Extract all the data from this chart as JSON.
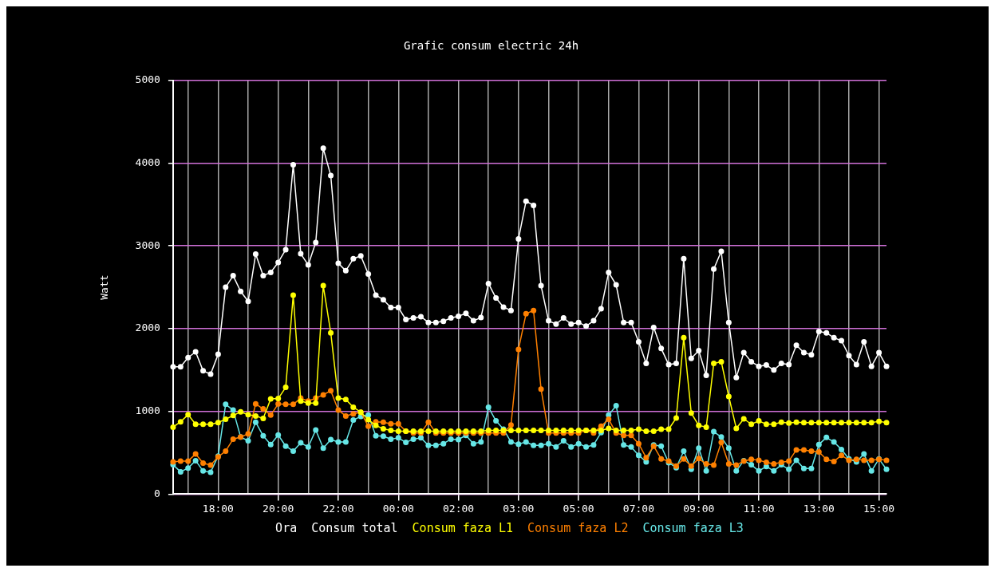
{
  "chart_data": {
    "type": "line",
    "title": "Grafic consum electric 24h",
    "xlabel": "Ora",
    "ylabel": "Watt",
    "categories": [
      null,
      null,
      null,
      null,
      null,
      null,
      "18:00",
      null,
      null,
      null,
      null,
      null,
      null,
      null,
      "20:00",
      null,
      null,
      null,
      null,
      null,
      null,
      null,
      "22:00",
      null,
      null,
      null,
      null,
      null,
      null,
      null,
      "00:00",
      null,
      null,
      null,
      null,
      null,
      null,
      null,
      "02:00",
      null,
      null,
      null,
      null,
      null,
      null,
      null,
      "03:00",
      null,
      null,
      null,
      null,
      null,
      null,
      null,
      "05:00",
      null,
      null,
      null,
      null,
      null,
      null,
      null,
      "07:00",
      null,
      null,
      null,
      null,
      null,
      null,
      null,
      "09:00",
      null,
      null,
      null,
      null,
      null,
      null,
      null,
      "11:00",
      null,
      null,
      null,
      null,
      null,
      null,
      null,
      "13:00",
      null,
      null,
      null,
      null,
      null,
      null,
      null,
      "15:00",
      null
    ],
    "series": [
      {
        "name": "Consum total",
        "color": "#ffffff",
        "values": [
          1540,
          1540,
          1650,
          1720,
          1490,
          1450,
          1690,
          2500,
          2640,
          2450,
          2330,
          2900,
          2640,
          2680,
          2800,
          2955,
          3980,
          2905,
          2770,
          3040,
          4180,
          3850,
          2790,
          2700,
          2845,
          2880,
          2660,
          2405,
          2350,
          2255,
          2255,
          2110,
          2130,
          2145,
          2075,
          2075,
          2090,
          2130,
          2150,
          2185,
          2095,
          2135,
          2545,
          2370,
          2260,
          2220,
          3085,
          3540,
          3490,
          2520,
          2095,
          2055,
          2130,
          2055,
          2075,
          2030,
          2095,
          2240,
          2680,
          2530,
          2075,
          2075,
          1840,
          1580,
          2015,
          1760,
          1565,
          1580,
          2845,
          1640,
          1735,
          1435,
          2720,
          2935,
          2075,
          1410,
          1710,
          1600,
          1545,
          1560,
          1500,
          1580,
          1565,
          1800,
          1710,
          1685,
          1965,
          1950,
          1890,
          1855,
          1675,
          1565,
          1840,
          1545,
          1710,
          1545
        ]
      },
      {
        "name": "Consum faza L1",
        "color": "#ffff00",
        "values": [
          810,
          875,
          960,
          845,
          845,
          845,
          865,
          905,
          950,
          995,
          960,
          945,
          915,
          1150,
          1155,
          1290,
          2405,
          1125,
          1100,
          1100,
          2520,
          1950,
          1160,
          1145,
          1050,
          990,
          900,
          830,
          790,
          770,
          760,
          760,
          760,
          760,
          760,
          760,
          760,
          760,
          760,
          760,
          760,
          760,
          770,
          770,
          770,
          770,
          770,
          770,
          770,
          770,
          770,
          770,
          770,
          770,
          770,
          770,
          770,
          770,
          795,
          770,
          770,
          770,
          785,
          760,
          760,
          785,
          785,
          920,
          1890,
          980,
          830,
          810,
          1580,
          1600,
          1180,
          795,
          910,
          845,
          885,
          845,
          845,
          870,
          860,
          870,
          865,
          865,
          865,
          865,
          865,
          865,
          865,
          865,
          865,
          865,
          880,
          865
        ]
      },
      {
        "name": "Consum faza L2",
        "color": "#ff8000",
        "values": [
          390,
          400,
          400,
          485,
          375,
          350,
          450,
          520,
          665,
          690,
          730,
          1090,
          1030,
          955,
          1090,
          1085,
          1085,
          1160,
          1125,
          1160,
          1200,
          1250,
          1015,
          945,
          970,
          990,
          820,
          875,
          870,
          850,
          850,
          760,
          740,
          740,
          870,
          740,
          740,
          740,
          740,
          740,
          740,
          740,
          740,
          740,
          740,
          835,
          1750,
          2180,
          2220,
          1270,
          740,
          740,
          740,
          740,
          740,
          770,
          740,
          820,
          905,
          740,
          710,
          710,
          610,
          440,
          580,
          425,
          400,
          340,
          425,
          340,
          430,
          365,
          350,
          625,
          365,
          350,
          400,
          420,
          410,
          385,
          365,
          385,
          400,
          535,
          535,
          520,
          510,
          420,
          395,
          470,
          410,
          420,
          410,
          410,
          420,
          410
        ]
      },
      {
        "name": "Consum faza L3",
        "color": "#66e6e6",
        "values": [
          355,
          270,
          315,
          405,
          280,
          265,
          460,
          1085,
          1015,
          690,
          645,
          870,
          705,
          600,
          715,
          580,
          520,
          620,
          570,
          775,
          555,
          660,
          630,
          630,
          895,
          940,
          955,
          705,
          700,
          665,
          680,
          625,
          665,
          680,
          590,
          590,
          610,
          665,
          660,
          710,
          610,
          630,
          1050,
          885,
          785,
          630,
          605,
          630,
          590,
          590,
          610,
          570,
          645,
          570,
          610,
          570,
          595,
          745,
          955,
          1070,
          595,
          570,
          470,
          390,
          595,
          580,
          380,
          320,
          520,
          300,
          555,
          280,
          755,
          690,
          555,
          280,
          405,
          355,
          280,
          335,
          280,
          355,
          300,
          410,
          310,
          310,
          600,
          685,
          630,
          540,
          425,
          390,
          485,
          280,
          425,
          300
        ]
      }
    ],
    "ylim": [
      0,
      5000
    ],
    "yticks": [
      0,
      1000,
      2000,
      3000,
      4000,
      5000
    ],
    "grid": true,
    "legend": "bottom",
    "marker": "circle",
    "line_style": "solid"
  }
}
